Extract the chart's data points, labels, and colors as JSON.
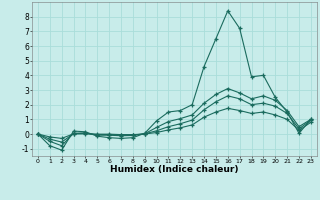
{
  "title": "",
  "xlabel": "Humidex (Indice chaleur)",
  "ylabel": "",
  "bg_color": "#c8ecea",
  "grid_color": "#aaddda",
  "line_color": "#1a6b5e",
  "xlim": [
    -0.5,
    23.5
  ],
  "ylim": [
    -1.5,
    9.0
  ],
  "xticks": [
    0,
    1,
    2,
    3,
    4,
    5,
    6,
    7,
    8,
    9,
    10,
    11,
    12,
    13,
    14,
    15,
    16,
    17,
    18,
    19,
    20,
    21,
    22,
    23
  ],
  "yticks": [
    -1,
    0,
    1,
    2,
    3,
    4,
    5,
    6,
    7,
    8
  ],
  "curves": [
    {
      "x": [
        0,
        1,
        2,
        3,
        4,
        5,
        6,
        7,
        8,
        9,
        10,
        11,
        12,
        13,
        14,
        15,
        16,
        17,
        18,
        19,
        20,
        21,
        22,
        23
      ],
      "y": [
        0.0,
        -0.8,
        -1.1,
        0.2,
        0.15,
        -0.15,
        -0.25,
        -0.3,
        -0.25,
        0.05,
        0.9,
        1.5,
        1.6,
        2.0,
        4.6,
        6.5,
        8.4,
        7.2,
        3.9,
        4.0,
        2.5,
        1.5,
        0.05,
        1.0
      ]
    },
    {
      "x": [
        0,
        1,
        2,
        3,
        4,
        5,
        6,
        7,
        8,
        9,
        10,
        11,
        12,
        13,
        14,
        15,
        16,
        17,
        18,
        19,
        20,
        21,
        22,
        23
      ],
      "y": [
        0.0,
        -0.5,
        -0.8,
        0.05,
        0.08,
        -0.08,
        -0.08,
        -0.12,
        -0.1,
        0.02,
        0.45,
        0.85,
        1.05,
        1.3,
        2.1,
        2.7,
        3.1,
        2.8,
        2.4,
        2.6,
        2.3,
        1.6,
        0.5,
        1.0
      ]
    },
    {
      "x": [
        0,
        1,
        2,
        3,
        4,
        5,
        6,
        7,
        8,
        9,
        10,
        11,
        12,
        13,
        14,
        15,
        16,
        17,
        18,
        19,
        20,
        21,
        22,
        23
      ],
      "y": [
        0.0,
        -0.35,
        -0.55,
        0.02,
        0.04,
        -0.04,
        -0.04,
        -0.08,
        -0.07,
        0.01,
        0.22,
        0.5,
        0.7,
        0.95,
        1.65,
        2.2,
        2.6,
        2.4,
        2.0,
        2.1,
        1.9,
        1.4,
        0.35,
        0.95
      ]
    },
    {
      "x": [
        0,
        1,
        2,
        3,
        4,
        5,
        6,
        7,
        8,
        9,
        10,
        11,
        12,
        13,
        14,
        15,
        16,
        17,
        18,
        19,
        20,
        21,
        22,
        23
      ],
      "y": [
        0.0,
        -0.2,
        -0.3,
        0.01,
        0.01,
        -0.01,
        -0.01,
        -0.04,
        -0.04,
        0.0,
        0.1,
        0.28,
        0.42,
        0.62,
        1.15,
        1.5,
        1.75,
        1.6,
        1.4,
        1.5,
        1.3,
        1.0,
        0.25,
        0.8
      ]
    }
  ]
}
